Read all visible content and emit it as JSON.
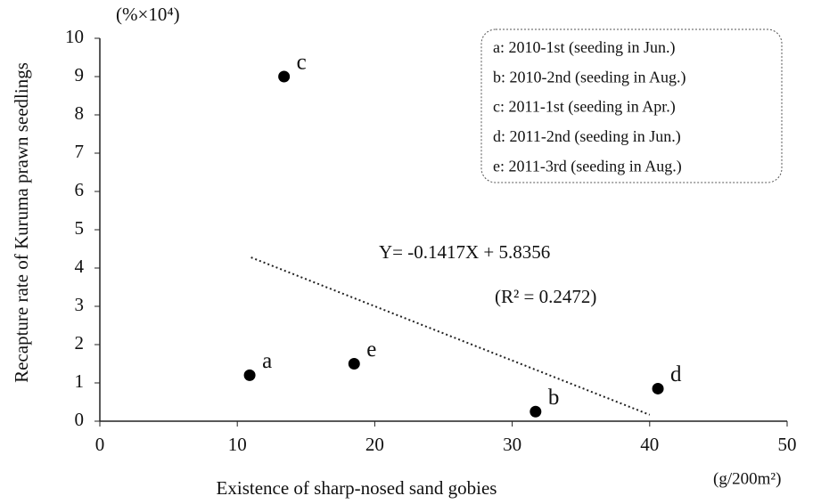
{
  "chart_data": {
    "type": "scatter",
    "x_label": "Existence of sharp-nosed sand gobies",
    "y_label": "Recapture rate of Kuruma prawn seedlings",
    "x_unit": "(g/200m²)",
    "y_unit": "(%×10⁴)",
    "x": [
      10.9,
      31.7,
      13.4,
      40.6,
      18.5
    ],
    "values": [
      1.2,
      0.25,
      9.0,
      0.85,
      1.5
    ],
    "point_labels": [
      "a",
      "b",
      "c",
      "d",
      "e"
    ],
    "color": "#000000",
    "xlim": [
      0,
      50
    ],
    "xticks": [
      0,
      10,
      20,
      30,
      40,
      50
    ],
    "ylim": [
      0,
      10
    ],
    "yticks": [
      0,
      1,
      2,
      3,
      4,
      5,
      6,
      7,
      8,
      9,
      10
    ],
    "grid": false,
    "legend": [
      "a: 2010-1st   (seeding in Jun.)",
      "b: 2010-2nd (seeding in Aug.)",
      "c: 2011-1st   (seeding in Apr.)",
      "d: 2011-2nd  (seeding in Jun.)",
      "e: 2011-3rd  (seeding in Aug.)"
    ],
    "trendline": {
      "slope": -0.1417,
      "intercept": 5.8356,
      "x_range": [
        11,
        40
      ]
    },
    "annotations": [
      "Y= -0.1417X + 5.8356",
      "(R² = 0.2472)"
    ]
  }
}
